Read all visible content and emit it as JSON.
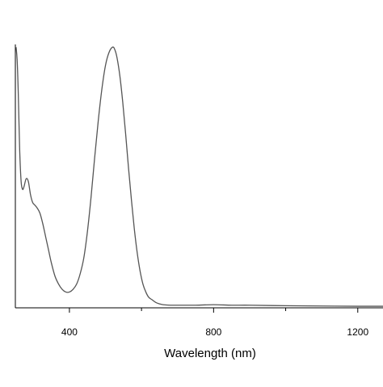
{
  "chart_data": {
    "type": "line",
    "title": "",
    "xlabel": "Wavelength (nm)",
    "ylabel": "",
    "xlim": [
      250,
      1270
    ],
    "ylim": [
      0,
      1.0
    ],
    "x_ticks_major": [
      400,
      800,
      1200
    ],
    "x_ticks_minor": [
      600,
      1000
    ],
    "x_tick_labels": [
      "400",
      "800",
      "1200"
    ],
    "grid": false,
    "legend": "none",
    "line_color": "#555555",
    "axis_color": "#000000",
    "series": [
      {
        "x": [
          252,
          255,
          258,
          262,
          266,
          270,
          274,
          280,
          286,
          292,
          298,
          304,
          310,
          318,
          326,
          334,
          342,
          350,
          360,
          370,
          380,
          390,
          400,
          410,
          420,
          430,
          440,
          450,
          460,
          470,
          480,
          490,
          500,
          510,
          520,
          526,
          532,
          540,
          548,
          556,
          564,
          572,
          580,
          588,
          596,
          604,
          612,
          620,
          630,
          640,
          650,
          660,
          680,
          700,
          750,
          800,
          850,
          900,
          1000,
          1100,
          1200,
          1270
        ],
        "y": [
          0.99,
          0.94,
          0.82,
          0.6,
          0.48,
          0.45,
          0.46,
          0.49,
          0.48,
          0.43,
          0.4,
          0.39,
          0.38,
          0.36,
          0.32,
          0.27,
          0.22,
          0.17,
          0.12,
          0.09,
          0.07,
          0.06,
          0.06,
          0.07,
          0.09,
          0.13,
          0.19,
          0.29,
          0.42,
          0.57,
          0.71,
          0.83,
          0.92,
          0.97,
          0.99,
          0.98,
          0.95,
          0.88,
          0.78,
          0.66,
          0.53,
          0.41,
          0.3,
          0.21,
          0.14,
          0.09,
          0.06,
          0.04,
          0.03,
          0.02,
          0.015,
          0.012,
          0.01,
          0.01,
          0.01,
          0.012,
          0.01,
          0.01,
          0.008,
          0.007,
          0.006,
          0.006
        ]
      }
    ]
  }
}
